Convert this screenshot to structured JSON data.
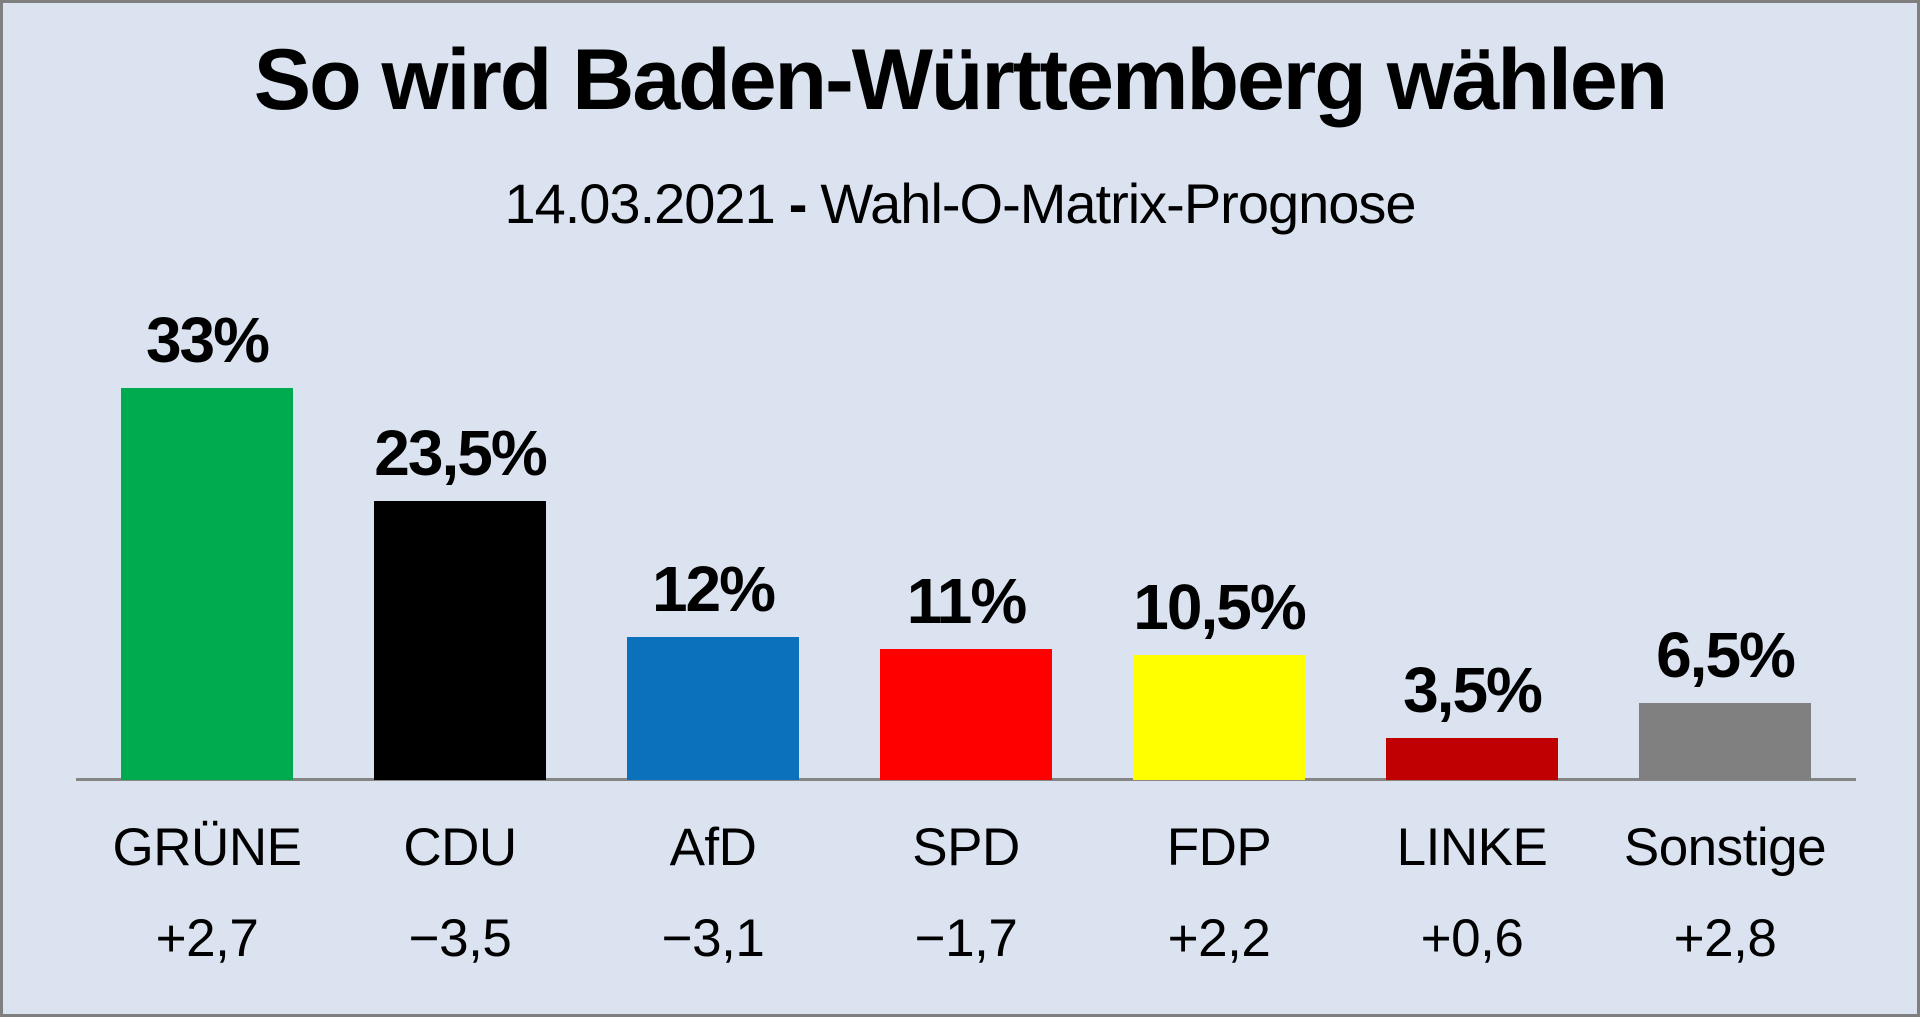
{
  "page": {
    "background_color": "#DBE3F0",
    "border_color": "#7F7F7F"
  },
  "header": {
    "title": "So wird Baden-Württemberg wählen",
    "subtitle": {
      "date": "14.03.2021",
      "separator": "-",
      "label": "Wahl-O-Matrix-Prognose"
    }
  },
  "chart_data": {
    "type": "bar",
    "title": "So wird Baden-Württemberg wählen",
    "subtitle": "14.03.2021 - Wahl-O-Matrix-Prognose",
    "categories": [
      "GRÜNE",
      "CDU",
      "AfD",
      "SPD",
      "FDP",
      "LINKE",
      "Sonstige"
    ],
    "values": [
      33,
      23.5,
      12,
      11,
      10.5,
      3.5,
      6.5
    ],
    "value_labels": [
      "33%",
      "23,5%",
      "12%",
      "11%",
      "10,5%",
      "3,5%",
      "6,5%"
    ],
    "change_labels": [
      "+2,7",
      "−3,5",
      "−3,1",
      "−1,7",
      "+2,2",
      "+0,6",
      "+2,8"
    ],
    "colors": [
      "#00AB50",
      "#000000",
      "#0C71BC",
      "#FE0000",
      "#FFFF00",
      "#C00000",
      "#808080"
    ],
    "axis_color": "#858585",
    "ylim": [
      0,
      35
    ],
    "grid": false,
    "legend": "none",
    "xlabel": "",
    "ylabel": ""
  }
}
